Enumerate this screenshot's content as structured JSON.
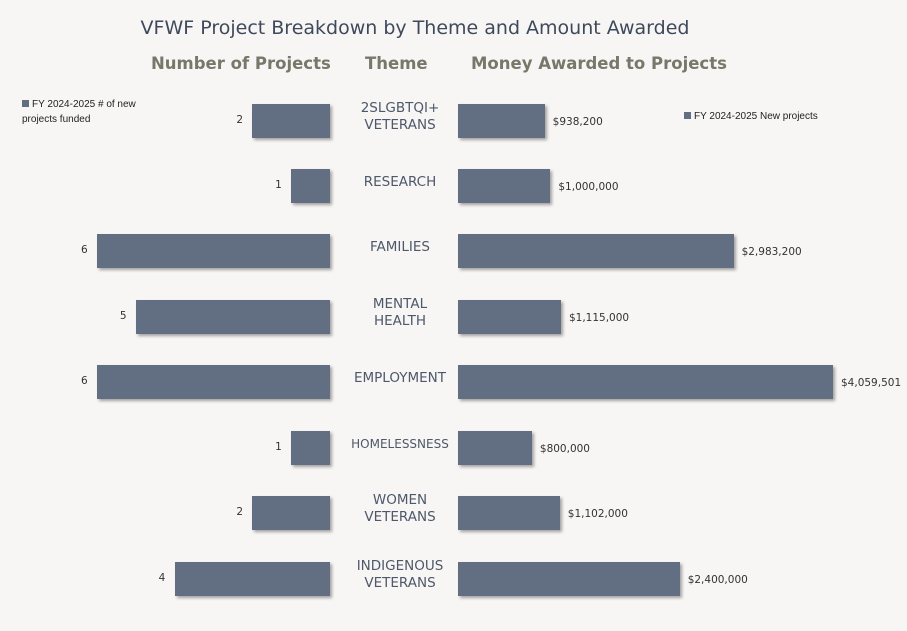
{
  "chart_data": [
    {
      "type": "bar",
      "orientation": "horizontal",
      "title": "VFWF Project Breakdown by Theme and Amount Awarded",
      "panel_title": "Number of Projects",
      "category_header": "Theme",
      "categories": [
        "2SLGBTQI+ VETERANS",
        "RESEARCH",
        "FAMILIES",
        "MENTAL HEALTH",
        "EMPLOYMENT",
        "HOMELESSNESS",
        "WOMEN VETERANS",
        "INDIGENOUS VETERANS"
      ],
      "series": [
        {
          "name": "FY 2024-2025 # of new projects funded",
          "values": [
            2,
            1,
            6,
            5,
            6,
            1,
            2,
            4
          ]
        }
      ],
      "data_labels": [
        "2",
        "1",
        "6",
        "5",
        "6",
        "1",
        "2",
        "4"
      ],
      "legend": "top-left",
      "color": "#626e82"
    },
    {
      "type": "bar",
      "orientation": "horizontal",
      "panel_title": "Money Awarded to Projects",
      "categories": [
        "2SLGBTQI+ VETERANS",
        "RESEARCH",
        "FAMILIES",
        "MENTAL HEALTH",
        "EMPLOYMENT",
        "HOMELESSNESS",
        "WOMEN VETERANS",
        "INDIGENOUS VETERANS"
      ],
      "series": [
        {
          "name": "FY 2024-2025 New projects",
          "values": [
            938200,
            1000000,
            2983200,
            1115000,
            4059501,
            800000,
            1102000,
            2400000
          ]
        }
      ],
      "data_labels": [
        "$938,200",
        "$1,000,000",
        "$2,983,200",
        "$1,115,000",
        "$4,059,501",
        "$800,000",
        "$1,102,000",
        "$2,400,000"
      ],
      "legend": "top-right",
      "color": "#626e82"
    }
  ],
  "theme_lines": [
    [
      "2SLGBTQI+",
      "VETERANS"
    ],
    [
      "RESEARCH"
    ],
    [
      "FAMILIES"
    ],
    [
      "MENTAL",
      "HEALTH"
    ],
    [
      "EMPLOYMENT"
    ],
    [
      "HOMELESSNESS"
    ],
    [
      "WOMEN",
      "VETERANS"
    ],
    [
      "INDIGENOUS",
      "VETERANS"
    ]
  ]
}
